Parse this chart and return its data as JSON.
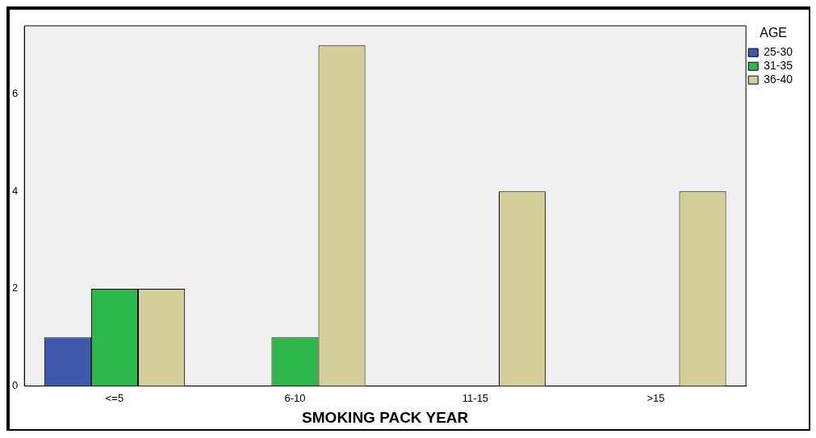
{
  "chart_data": {
    "type": "bar",
    "xlabel": "SMOKING PACK YEAR",
    "legend_title": "AGE",
    "categories": [
      "<=5",
      "6-10",
      "11-15",
      ">15"
    ],
    "series": [
      {
        "name": "25-30",
        "color": "#3e58ac",
        "values": [
          1,
          null,
          null,
          null
        ]
      },
      {
        "name": "31-35",
        "color": "#2eb84c",
        "values": [
          2,
          1,
          null,
          null
        ]
      },
      {
        "name": "36-40",
        "color": "#d4cf98",
        "values": [
          2,
          7,
          4,
          4
        ]
      }
    ],
    "ylim": [
      0,
      7.4
    ],
    "yticks": [
      0,
      2,
      4,
      6
    ],
    "grid": false,
    "legend": "top right"
  }
}
